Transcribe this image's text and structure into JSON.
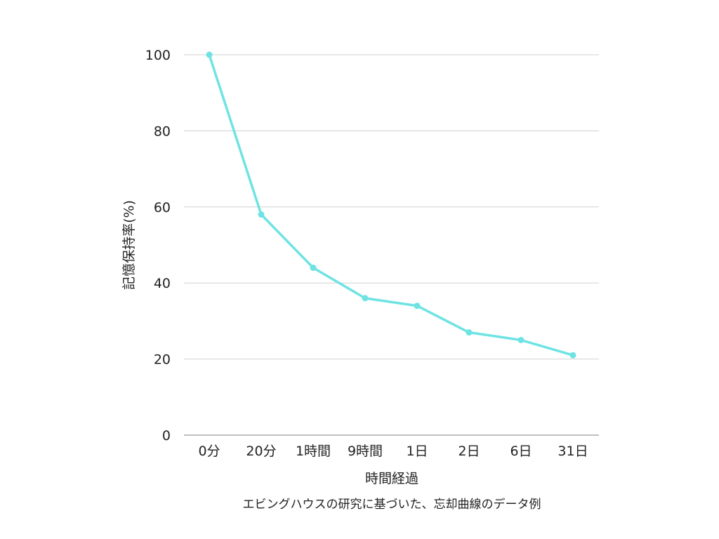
{
  "chart_data": {
    "type": "line",
    "categories": [
      "0分",
      "20分",
      "1時間",
      "9時間",
      "1日",
      "2日",
      "6日",
      "31日"
    ],
    "series": [
      {
        "values": [
          100,
          58,
          44,
          36,
          34,
          27,
          25,
          21
        ],
        "color": "#6fe3e3"
      }
    ],
    "xlabel": "時間経過",
    "ylabel": "記憶保持率(%)",
    "ylim": [
      0,
      100
    ],
    "yticks": [
      0,
      20,
      40,
      60,
      80,
      100
    ],
    "grid": true,
    "caption": "エビングハウスの研究に基づいた、忘却曲線のデータ例"
  }
}
